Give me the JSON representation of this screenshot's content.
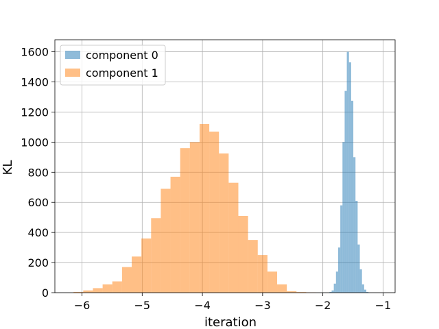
{
  "chart_data": {
    "type": "histogram",
    "xlabel": "iteration",
    "ylabel": "KL",
    "xlim": [
      -6.45,
      -0.8
    ],
    "ylim": [
      0,
      1680
    ],
    "xticks": [
      -6,
      -5,
      -4,
      -3,
      -2,
      -1
    ],
    "xtick_labels": [
      "−6",
      "−5",
      "−4",
      "−3",
      "−2",
      "−1"
    ],
    "yticks": [
      0,
      200,
      400,
      600,
      800,
      1000,
      1200,
      1400,
      1600
    ],
    "grid": true,
    "legend": {
      "placement": "top-left",
      "entries": [
        "component 0",
        "component 1"
      ]
    },
    "series": [
      {
        "name": "component 0",
        "color": "#1f77b4",
        "alpha": 0.5,
        "bin_width": 0.036,
        "bins": [
          {
            "x0": -1.89,
            "y": 5
          },
          {
            "x0": -1.854,
            "y": 15
          },
          {
            "x0": -1.818,
            "y": 60
          },
          {
            "x0": -1.782,
            "y": 140
          },
          {
            "x0": -1.746,
            "y": 300
          },
          {
            "x0": -1.71,
            "y": 580
          },
          {
            "x0": -1.674,
            "y": 1000
          },
          {
            "x0": -1.638,
            "y": 1340
          },
          {
            "x0": -1.602,
            "y": 1600
          },
          {
            "x0": -1.566,
            "y": 1530
          },
          {
            "x0": -1.53,
            "y": 1275
          },
          {
            "x0": -1.494,
            "y": 900
          },
          {
            "x0": -1.458,
            "y": 610
          },
          {
            "x0": -1.422,
            "y": 320
          },
          {
            "x0": -1.386,
            "y": 155
          },
          {
            "x0": -1.35,
            "y": 55
          },
          {
            "x0": -1.314,
            "y": 20
          },
          {
            "x0": -1.278,
            "y": 5
          }
        ]
      },
      {
        "name": "component 1",
        "color": "#ff7f0e",
        "alpha": 0.5,
        "bin_width": 0.161,
        "bins": [
          {
            "x0": -6.14,
            "y": 5
          },
          {
            "x0": -5.979,
            "y": 15
          },
          {
            "x0": -5.818,
            "y": 30
          },
          {
            "x0": -5.657,
            "y": 55
          },
          {
            "x0": -5.496,
            "y": 75
          },
          {
            "x0": -5.335,
            "y": 170
          },
          {
            "x0": -5.174,
            "y": 240
          },
          {
            "x0": -5.013,
            "y": 360
          },
          {
            "x0": -4.852,
            "y": 495
          },
          {
            "x0": -4.691,
            "y": 690
          },
          {
            "x0": -4.53,
            "y": 770
          },
          {
            "x0": -4.369,
            "y": 960
          },
          {
            "x0": -4.208,
            "y": 1000
          },
          {
            "x0": -4.047,
            "y": 1120
          },
          {
            "x0": -3.886,
            "y": 1070
          },
          {
            "x0": -3.725,
            "y": 925
          },
          {
            "x0": -3.564,
            "y": 730
          },
          {
            "x0": -3.403,
            "y": 510
          },
          {
            "x0": -3.242,
            "y": 350
          },
          {
            "x0": -3.081,
            "y": 250
          },
          {
            "x0": -2.92,
            "y": 140
          },
          {
            "x0": -2.759,
            "y": 55
          },
          {
            "x0": -2.598,
            "y": 10
          },
          {
            "x0": -2.437,
            "y": 4
          },
          {
            "x0": -2.276,
            "y": 2
          }
        ]
      }
    ]
  }
}
